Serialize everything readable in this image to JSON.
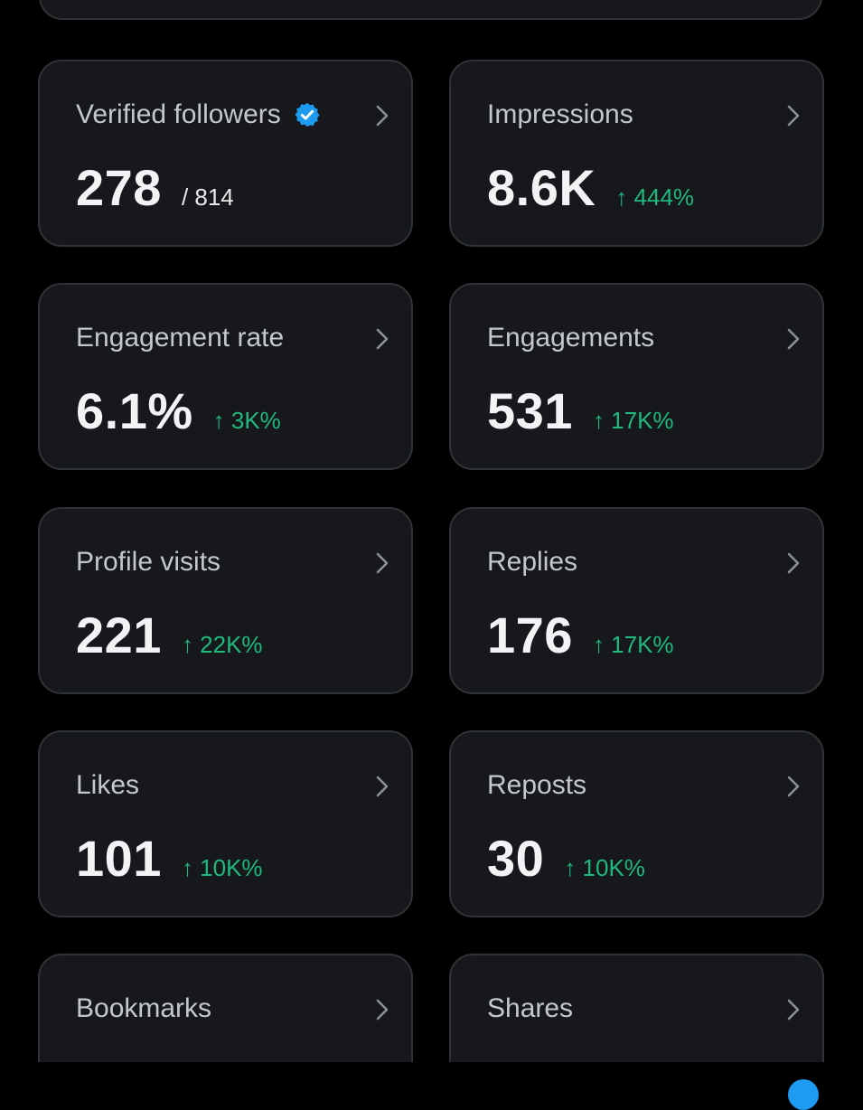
{
  "colors": {
    "background": "#000000",
    "card": "#16181c",
    "card_border": "#2f3336",
    "label": "#c4c8cc",
    "value": "#f1f3f4",
    "positive_change": "#1fb97c",
    "verified_badge": "#1d9bf0"
  },
  "metrics": {
    "verified_followers": {
      "label": "Verified followers",
      "value": "278",
      "total": "/ 814",
      "icon": "verified-badge-icon"
    },
    "impressions": {
      "label": "Impressions",
      "value": "8.6K",
      "change": "↑ 444%"
    },
    "engagement_rate": {
      "label": "Engagement rate",
      "value": "6.1%",
      "change": "↑ 3K%"
    },
    "engagements": {
      "label": "Engagements",
      "value": "531",
      "change": "↑ 17K%"
    },
    "profile_visits": {
      "label": "Profile visits",
      "value": "221",
      "change": "↑ 22K%"
    },
    "replies": {
      "label": "Replies",
      "value": "176",
      "change": "↑ 17K%"
    },
    "likes": {
      "label": "Likes",
      "value": "101",
      "change": "↑ 10K%"
    },
    "reposts": {
      "label": "Reposts",
      "value": "30",
      "change": "↑ 10K%"
    },
    "bookmarks": {
      "label": "Bookmarks"
    },
    "shares": {
      "label": "Shares"
    }
  },
  "icons": {
    "chevron": "chevron-right-icon",
    "verified": "verified-badge-icon"
  }
}
